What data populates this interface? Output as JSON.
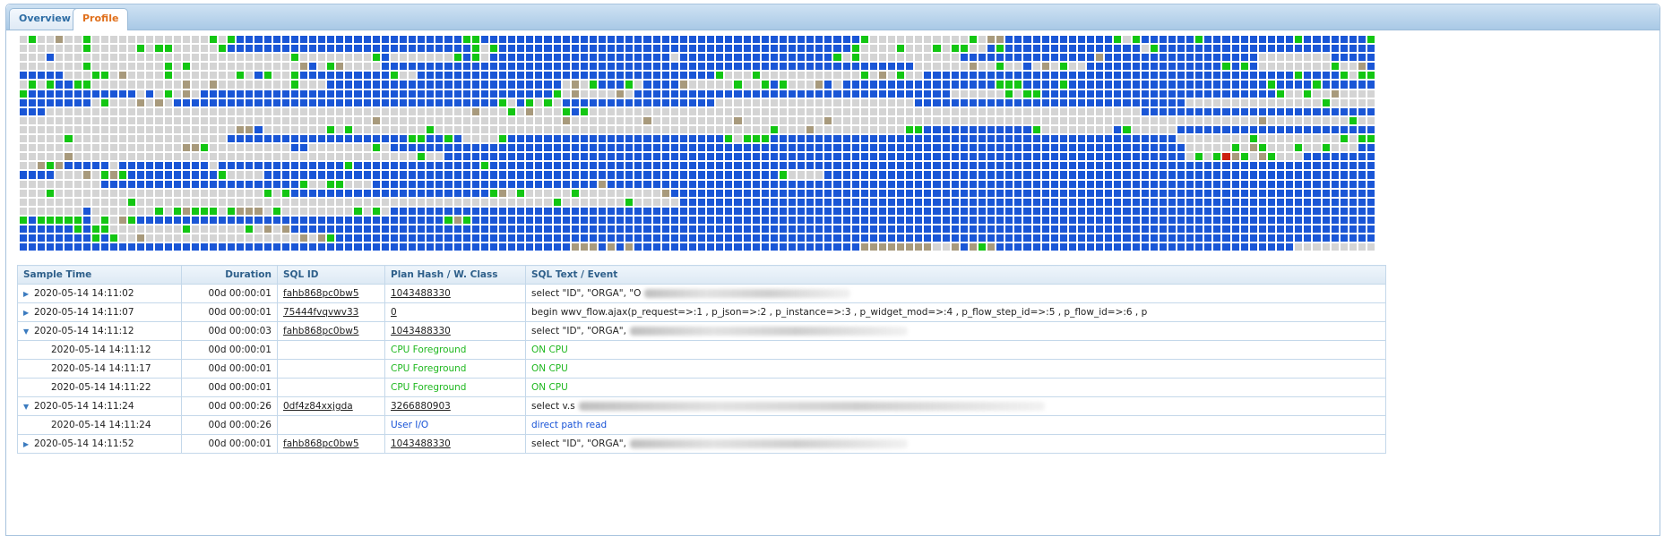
{
  "tabs": [
    {
      "label": "Overview",
      "active": false
    },
    {
      "label": "Profile",
      "active": true
    }
  ],
  "heatmap": {
    "colors": {
      "g": "#d4d4d4",
      "b": "#1a56d6",
      "G": "#13c613",
      "t": "#a89a7c",
      "r": "#cc2211"
    },
    "rows": [
      "gGggtggGgggggggggggggGgGbbbbbbbbbbbbbbbbbbbbbbbbbGGbbbbbbbbbbbbbbbbbbbbbbbbbbbbbbbbbbbbbbbbbbGgggggggggggGgttbbbbbbbbbbbbGgGbbbbbbGbbbbbbbbbbGbbbbbbbGGGbGbbbGbGgb",
      "gggggggGgggggGgGGgggggGbbbbbbbbbbbbbbbbbbbbbbbbbbbGgGbbbbbbbbbbbbbbbbbbbbbbbbbbbbbbbbbbbbbbbGggggGgggGgGGggbGbbbbbbbbbbbbbbbgGbbbbbbbbbbbbbbbbbbbbbbbbbbbbbbbbbbGbbbb",
      "gggbggggggggggggggggggggggggggGggggggggGbgggggggGbGgbbbbbbbbbbbbbbbbbbbbgbbbbbbbbbbbbbbbbbGgGgggggggggggbbbbbbbbbbbbbbbtbbbbbbbbbbbbbbbbbggggggggbbbbbbbbbbbbbbbbbbbbbb",
      "gggggggGggggggggGgGggggggggggggtbgGtggggbbbbbbbbbbbbbbbbbbbbbbbbbbbbbbbbbbbbbbbbbbbbbbbbbbbbbbbbbbbggggggtggGggbgtgGggbbbbbbbbbbbbbbbGbGbggggggggGggtbGGbbbbbbbbbbbbbbbb",
      "bbbbbgggGGgtggggGgggggggGgbGggGbbbbbbbbbbGggbbbbbbbbbbbbbbbbbbbbbbbbbbbbbbbbbGgggGgggggggggggGgtgGggbbbbbbbbbbbbbbbbbbbbbbbbbbbbbbbbbbbbbbbbbGbbbbGgGGgGgGgGGbbbbbbbbb",
      "gGgGbbGGggggggggggtggtggggggggGgggbbbbbbbbbbbbbbbbbbbbbbbbbbgtgGbbbGgbbbbtgggggGggGbGgggtbgbbbbbbbbbbbbbbbbbGGGbbbbGbbbbbbbbbbbbbbbbbbbbbbGbbbbGbbbbbbbbbbbbbbbbbbbbbbbb",
      "GbbbbbbbbbbbbgbgGgtgbbbbbbbbbbbbbbbbbbbbbbbbbbbbbbbbbbbbbbbGgtggggtgbbbbbbbbbbbbbbbbbbbbbbbbbbbbbbbbbbbggggggGgGGbbbbbbbbbbbbbbbbbbbbbbbbbbGggGggtgggggGbbbbbbbbbbbbbbbb",
      "bbbbbbbbgGgggtgtgbbbbbbbbbbbbbbbbbbbbbbbbbbbbbbbbbbbbGgbGgGgbbbbbbbbbbbbbbbbbggggggggggggggggggggggbbbbbbbbbbbbbbbbbbbbbbbbbbbbbbgggggggggggggggGgggggggGGgggtgGbGgbbGb",
      "bbbgggggggggggggggggggggggggggggggggggggggggggggggtgggGgtgggGbGgggggggggggggggggggggggggggggggggggggggggggggggggggggggggggggbbbbbbbbbbbbbbbbbbbbbbbbbbbbgggggggggggggggggg",
      "gggggggggggggggggggggggggggggggggggggggtggggggggggggggggggggtggggggggtgggggggggtgggggggggtgggggggggggggggggggggggggggggggggggggggggggggggtgggggggggGgggggggbbbbbbbbbbtggG",
      "ggggggggggggggggggggggggttbgggggggGgGggggggggGgggggggggggggggggggggggggggggggggggggGgggtggggggggggGGbbbbbbbbbbbbGggggggggbGgggggbbbbbbbbbbbbbbbbbbbbbbGgGggGGgbbbGggggGt",
      "gggggGgggggggggggggggggbbbbbbbbbbbbbbbbbbbbGGbbGbggggGbbbbbbbbbbbbbbbbbbbbbbbbGgGGGbbbbbbbbbbbbbbbbbbbbbbbbbbbbbbbbbbbbbbbbbbbbbggggggggGgggggggggGgGGGgGGgGbbbbbGGGGGG",
      "ggggggggggggggggggttGgggggggggbbgggggggGgbbbbbbbbbbbbbbbbbbbbbbbbbbbbbbbbbbbbbbbbbbbbbbbbbbbbbbbbbbbbbbbbbbbbbbbbbbbbbbbbbbbbbbbbgggggGgtGgggGggGgggbbbbbbbbbbbbbbbbbbbbb",
      "gggggtggggggggggggggggggggggggggggggggggggggGggbbbbbbbbbbbbbbbbbbbbbbbbbbbbbbbbbbbbbbbbbbbbbbbbbbbbbbbbbbbbbbbbbbbbbbbbbbbbbbbbbbgGgGrtGgtGgggbbbbbbbbbbbbbbbbbbbbbbbbbtGt",
      "ggtGtbbbbbgbbbbbbbbbbgbbbbbbbbbbbbbbGbbbbbbbbbbbbbbGbbbbbbbbbbbbbbbbbbbbbbbbbbbbbbbbbbbbbbbbbbbbbbbbbbbbbbbbbbbbbbbbbbbbbbbbbbbbbbbbbbbbbbbbbbbbbbbbbbbbbbbbbbbbbbbbbbb",
      "bbbbgggtgGtGbbbbbbbbbbGggggbbbbbbbbbbbbbbbbbbbbbbbbbbbbbbbbbbbbbbbbbbbbbbbbbbbbbbbbbGggggbbbbbbbbbbbbbbbbbbbbbbbbbbbbbbbbbbbbbbbbbbbbbbbbbbbbbbbbbbbbbbbbbbbbbbbbbbbbbbbbb",
      "gggggggggbbbbbbbbbbbbbbbbbbbbbbGggGGgggbbbbbbbbbbbbbbbbbbbbbbbbbtbbbbbbbbbbbbbbbbbbbbbbbbbbbbbbbbbbbbbbbbbbbbbbbbbbbbbbbbbbbbbbbbbbbbbbbbbbbbbbbbbbbbbbbbbbbbbbbbbbbbbbbbbbb",
      "gggGgggggggggggggggggggggggGgGbbbbbbbbbbbbbbbbbbbbbbGtgGgggggGgggggggggtbbbbbbbbbbbbbbbbbbbbbbbbbbbbbbbbbbbbbbbbbbbbbbbbbbbbbbbbbbbbbbbbbbbbbbbbbbbbbbbbbbbbbbbbbbbbbbbbbb",
      "ggggggggggggGggggggggggggggggggggggggggggggggggggggggggggggGgggggggGgggggbbbbbbbbbbbbbbbbbbbbbbbbbbbbbbbbbbbbbbbbbbbbbbbbbbbbbbbbbbbbbbbbbbbbbbbbbbbbbbbbbbbbbbbbbbbbbbbbbb",
      "gggggggbgggggggGgGtGGGgGtttgGggggggggGgGgbbbbbbbbbbbbbbbbbbbbbbbbbbbbbbbbbbbbbbbbbbbbbbbbbbbbbbbbbbbbbbbbbbbbbbbbbbbbbbbbbbbbbbbbbbbbbbbbbbbbbbbbbbbbbbbbbbbbbbbbbbbbbbbbb",
      "GbGGGGGbgGgtGbbbbbbbbbbbbbbbbbbbbbbbbbbbbbbbbbbGtGbbbbbbbbbbbbbbbbbbbbbbbbbbbbbbbbbbbbbbbbbbbbbbbbbbbbbbbbbbbbbbbbbbbbbbbbbbbbbbbbbbbbbbbbbbbbbbbbbbbbbbbbbbbbbbbbbbbbbbbbb",
      "bbbbbbGbGGggggggggGggggggGgtgtbbbbbbbbbbbbbbbbbbbbbbbbbbbbbbbbbbbbbbbbbbbbbbbbbbbbbbbbbbbbbbbbbbbbbbbbbbbbbbbbbbbbbbbbbbbbbbbbbbbbbbbbbbbbbbbbbbbbbbbbbbbbbbbbbbbbbbbbbbbb",
      "bbbbbbbbGbGggtgggggggggggggggggtgtGbbbbbbbbbbbbbbbbbbbbbbbbbbbbbbbbbbbbbbbbbbbbbbbbbbbbbbbbbbbbbbbbbbbbbbbbbbbbbbbbbbbbbbbbbbbbbbbbbbbbbbbbbbbbbbbbbbbbbbbbbbbbbbbbbbbbbbbbb",
      "bbbbbbbbbbbbbbbbbbbbbbbbbbbbbbbbbbbbbbbbbbbbbbbbbbbbbbbbbbbbbtttbtbtbbbbbbbbbbbbbbbbbbbbbbbbbttttttttggtbtGtbbbbbbbbbbbbbbbbbbbbbbbbbbbbbbbbbgggggggggggggggggggggggggggggg"
    ]
  },
  "table": {
    "headers": {
      "sample_time": "Sample Time",
      "duration": "Duration",
      "sql_id": "SQL ID",
      "plan_hash": "Plan Hash / W. Class",
      "sql_text": "SQL Text / Event"
    },
    "rows": [
      {
        "expander": "▶",
        "time": "2020-05-14 14:11:02",
        "duration": "00d 00:00:01",
        "sql_id": "fahb868pc0bw5",
        "plan": "1043488330",
        "text": "select \"ID\", \"ORGA\", \"O",
        "redact": 230,
        "child": false
      },
      {
        "expander": "▶",
        "time": "2020-05-14 14:11:07",
        "duration": "00d 00:00:01",
        "sql_id": "75444fvqvwv33",
        "plan": "0",
        "text": "begin wwv_flow.ajax(p_request=>:1 , p_json=>:2 , p_instance=>:3 , p_widget_mod=>:4 , p_flow_step_id=>:5 , p_flow_id=>:6 , p",
        "redact": 0,
        "child": false
      },
      {
        "expander": "▼",
        "time": "2020-05-14 14:11:12",
        "duration": "00d 00:00:03",
        "sql_id": "fahb868pc0bw5",
        "plan": "1043488330",
        "text": "select \"ID\", \"ORGA\",",
        "redact": 310,
        "child": false
      },
      {
        "expander": "",
        "time": "2020-05-14 14:11:12",
        "duration": "00d 00:00:01",
        "sql_id": "",
        "plan": "CPU Foreground",
        "text": "ON CPU",
        "redact": 0,
        "child": true,
        "cls": "cpu"
      },
      {
        "expander": "",
        "time": "2020-05-14 14:11:17",
        "duration": "00d 00:00:01",
        "sql_id": "",
        "plan": "CPU Foreground",
        "text": "ON CPU",
        "redact": 0,
        "child": true,
        "cls": "cpu"
      },
      {
        "expander": "",
        "time": "2020-05-14 14:11:22",
        "duration": "00d 00:00:01",
        "sql_id": "",
        "plan": "CPU Foreground",
        "text": "ON CPU",
        "redact": 0,
        "child": true,
        "cls": "cpu"
      },
      {
        "expander": "▼",
        "time": "2020-05-14 14:11:24",
        "duration": "00d 00:00:26",
        "sql_id": "0df4z84xxjgda",
        "plan": "3266880903",
        "text": "select v.s",
        "redact": 520,
        "child": false
      },
      {
        "expander": "",
        "time": "2020-05-14 14:11:24",
        "duration": "00d 00:00:26",
        "sql_id": "",
        "plan": "User I/O",
        "text": "direct path read",
        "redact": 0,
        "child": true,
        "cls": "io"
      },
      {
        "expander": "▶",
        "time": "2020-05-14 14:11:52",
        "duration": "00d 00:00:01",
        "sql_id": "fahb868pc0bw5",
        "plan": "1043488330",
        "text": "select \"ID\", \"ORGA\",",
        "redact": 310,
        "child": false
      }
    ]
  }
}
